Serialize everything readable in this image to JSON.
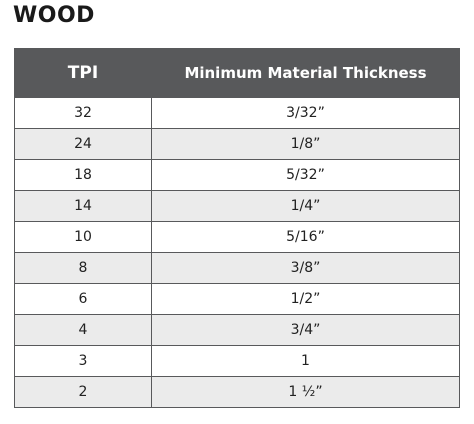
{
  "header": {
    "title": "WOOD"
  },
  "table": {
    "columns": [
      "TPI",
      "Minimum Material Thickness"
    ],
    "rows": [
      [
        "32",
        "3/32”"
      ],
      [
        "24",
        "1/8”"
      ],
      [
        "18",
        "5/32”"
      ],
      [
        "14",
        "1/4”"
      ],
      [
        "10",
        "5/16”"
      ],
      [
        "8",
        "3/8”"
      ],
      [
        "6",
        "1/2”"
      ],
      [
        "4",
        "3/4”"
      ],
      [
        "3",
        "1"
      ],
      [
        "2",
        "1 ½”"
      ]
    ]
  }
}
